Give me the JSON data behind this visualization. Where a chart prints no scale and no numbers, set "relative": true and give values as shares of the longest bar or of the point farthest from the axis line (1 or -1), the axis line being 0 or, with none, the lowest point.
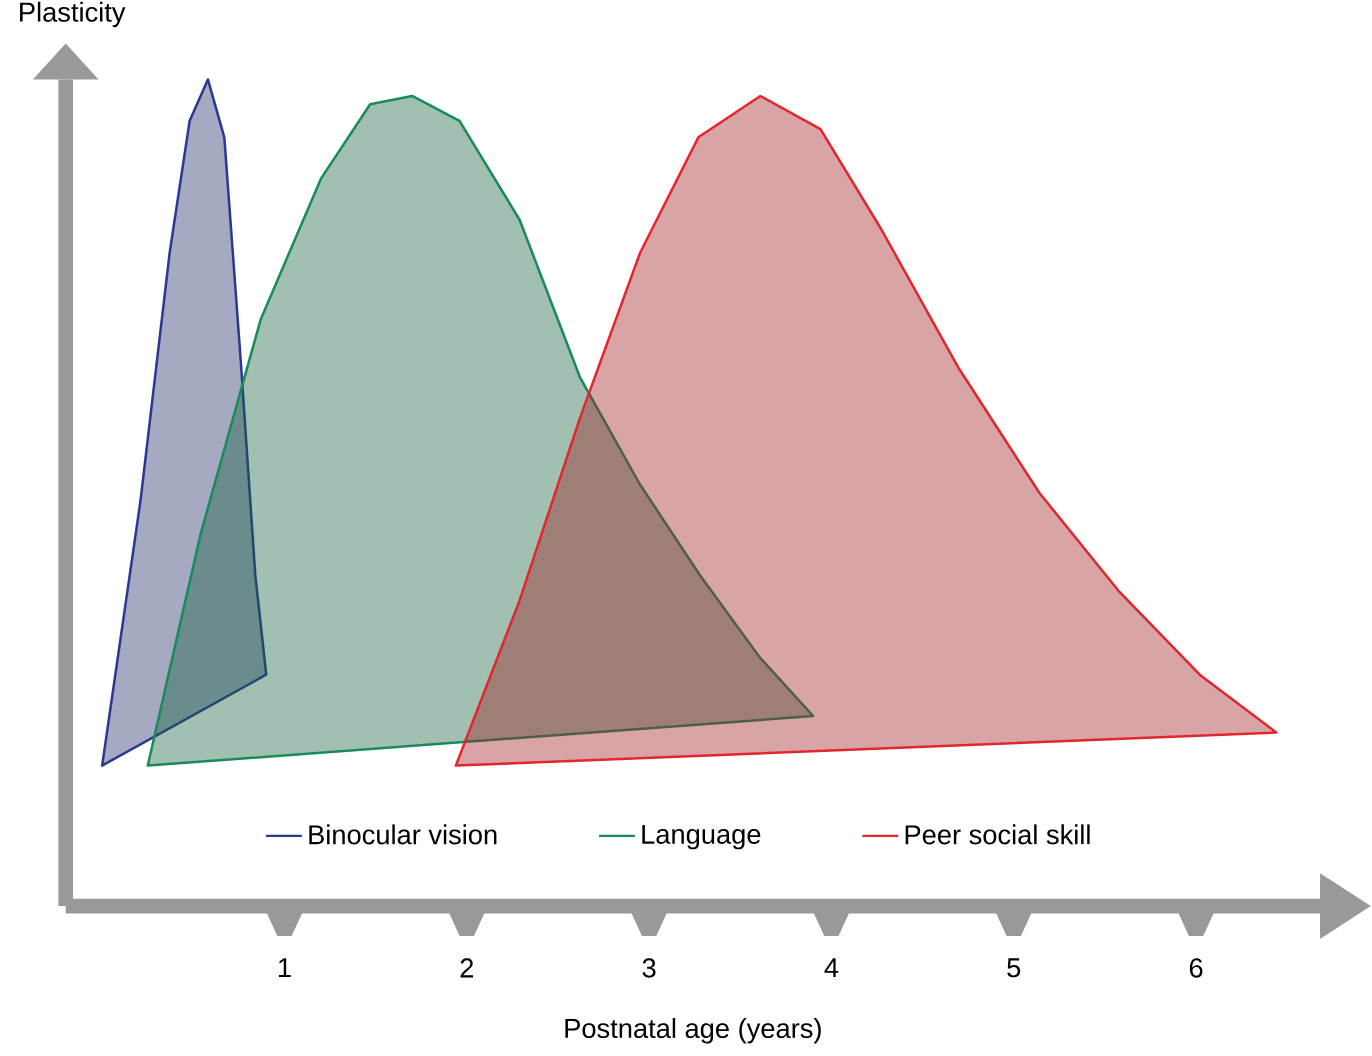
{
  "chart_data": {
    "type": "area",
    "relative": true,
    "xlabel": "Postnatal age (years)",
    "ylabel": "Plasticity",
    "xlim": [
      -0.2,
      6.68
    ],
    "xticks": [
      1,
      2,
      3,
      4,
      5,
      6
    ],
    "tick_labels": "x",
    "legend": "bottom",
    "series": [
      {
        "name": "Binocular vision",
        "color": "#2b3990",
        "x": [
          0.0,
          0.21,
          0.37,
          0.48,
          0.58,
          0.67,
          0.76,
          0.84,
          0.9
        ],
        "values": [
          0.17,
          0.49,
          0.79,
          0.95,
          1.0,
          0.93,
          0.66,
          0.4,
          0.28
        ]
      },
      {
        "name": "Language",
        "color": "#1b8a5a",
        "x": [
          0.25,
          0.54,
          0.87,
          1.2,
          1.47,
          1.7,
          1.96,
          2.29,
          2.62,
          2.95,
          3.28,
          3.61,
          3.9
        ],
        "values": [
          0.17,
          0.45,
          0.71,
          0.88,
          0.97,
          0.98,
          0.95,
          0.83,
          0.64,
          0.51,
          0.4,
          0.3,
          0.23
        ]
      },
      {
        "name": "Peer social skill",
        "color": "#e3262e",
        "x": [
          1.94,
          2.29,
          2.62,
          2.95,
          3.27,
          3.61,
          3.94,
          4.27,
          4.7,
          5.14,
          5.58,
          6.02,
          6.44
        ],
        "values": [
          0.17,
          0.37,
          0.59,
          0.79,
          0.93,
          0.98,
          0.94,
          0.82,
          0.65,
          0.5,
          0.38,
          0.28,
          0.21
        ]
      }
    ]
  }
}
